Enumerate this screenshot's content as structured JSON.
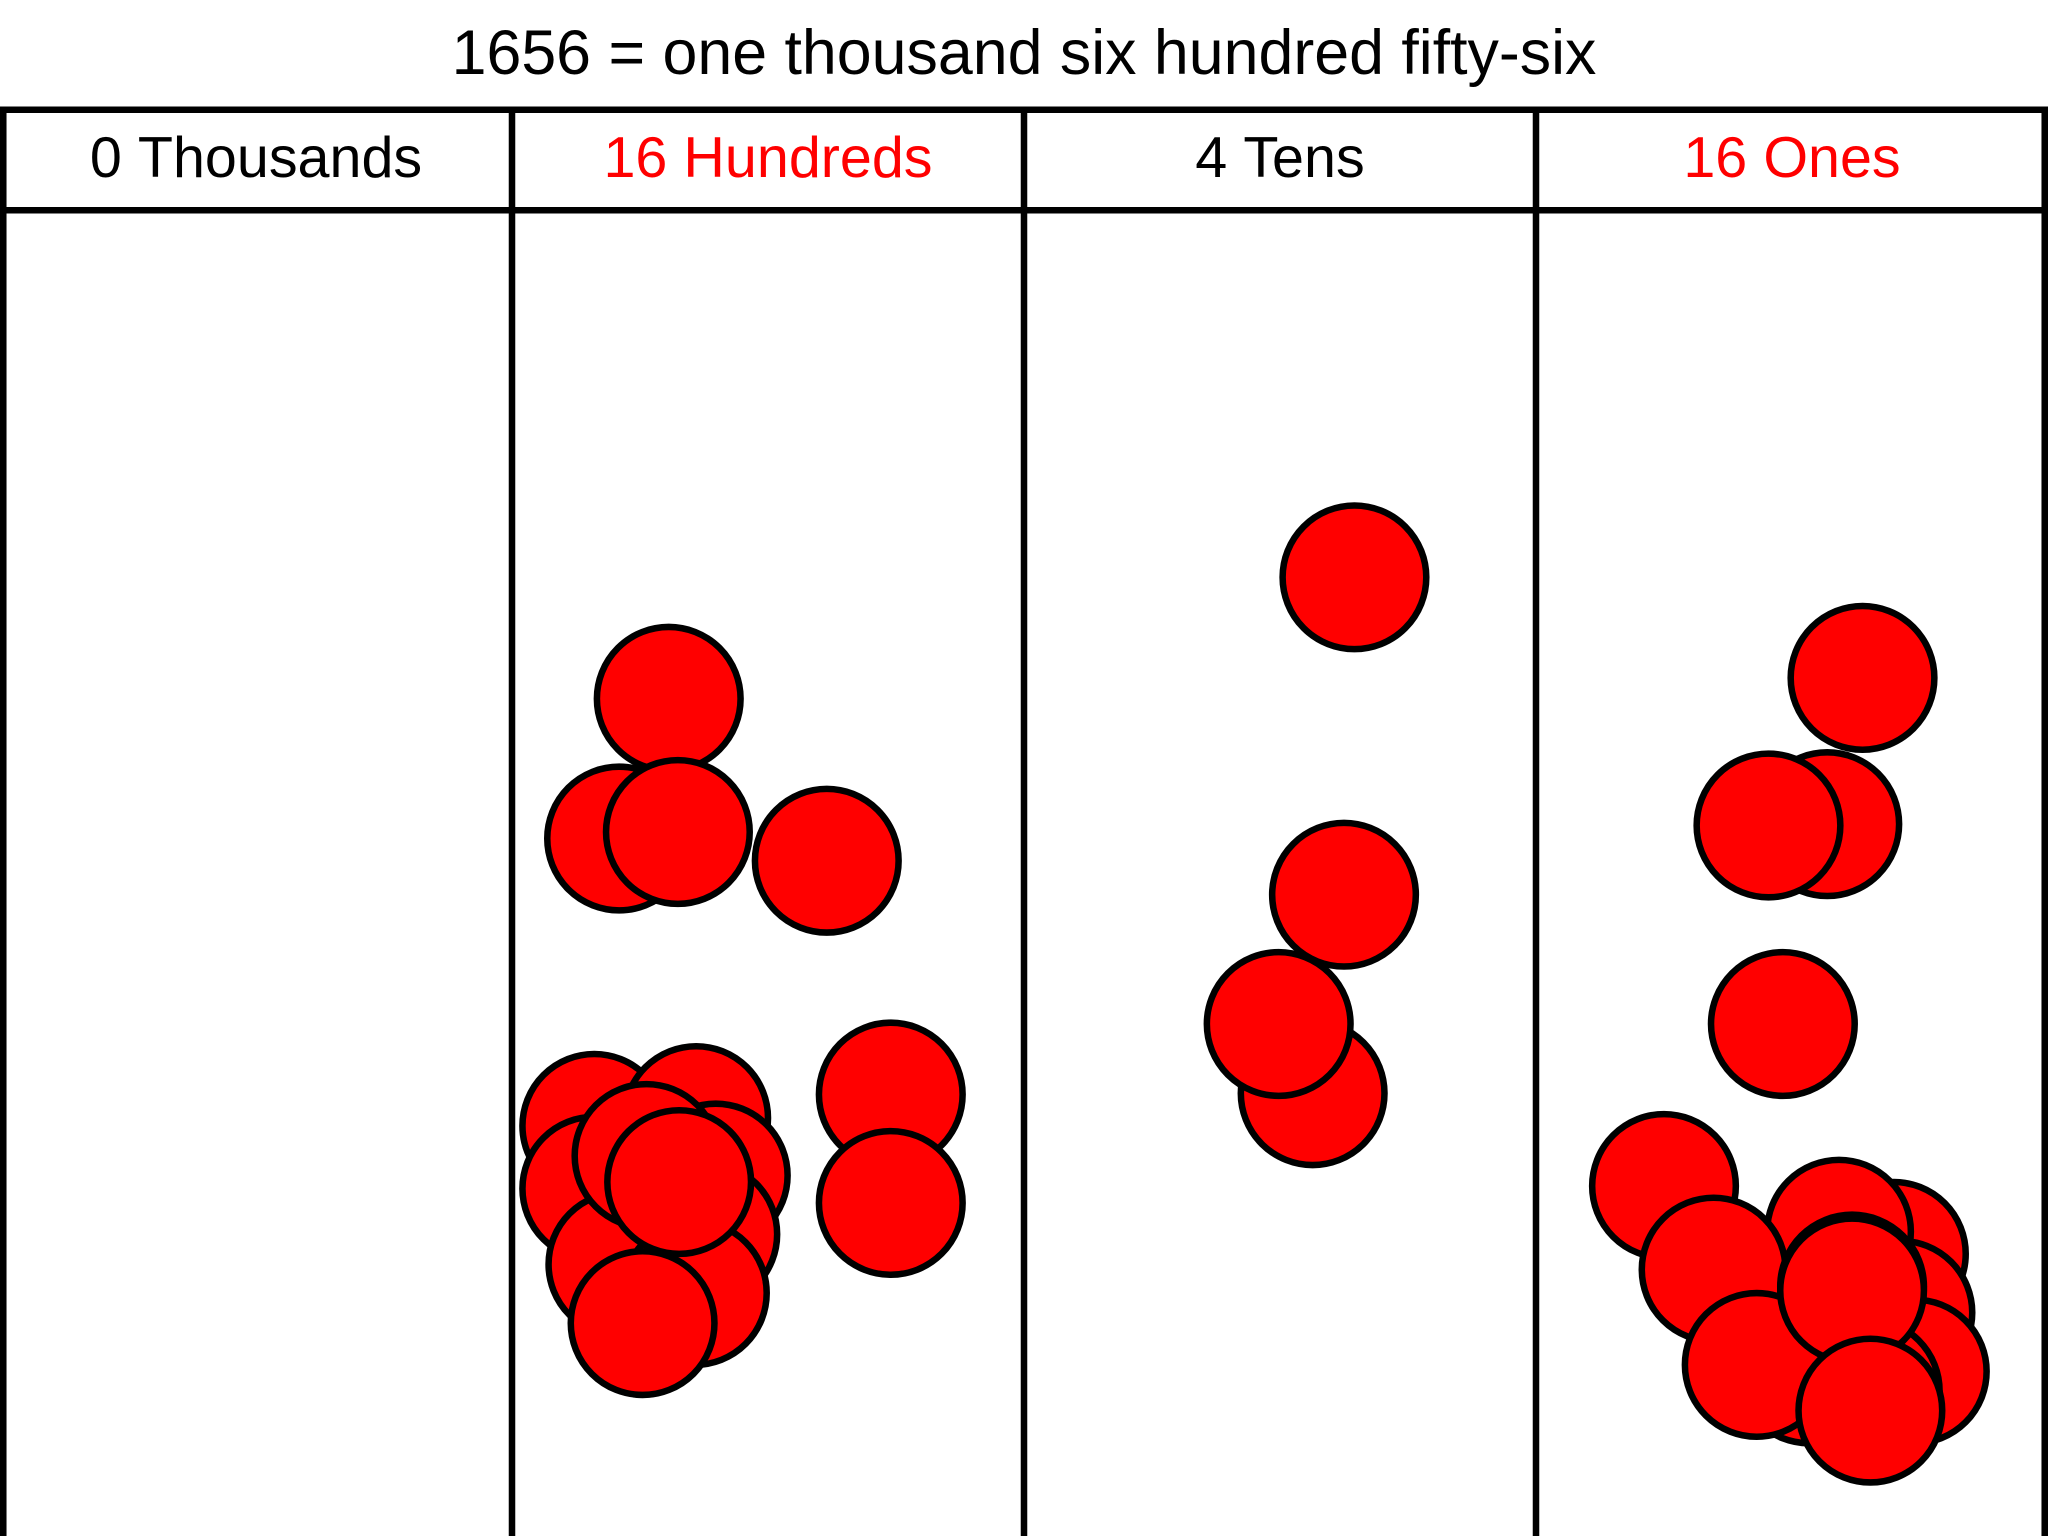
{
  "title": "1656 = one thousand six hundred fifty-six",
  "columns": [
    {
      "count": 0,
      "unit": "Thousands",
      "color": "#000000"
    },
    {
      "count": 16,
      "unit": "Hundreds",
      "color": "#ff0000"
    },
    {
      "count": 4,
      "unit": "Tens",
      "color": "#000000"
    },
    {
      "count": 16,
      "unit": "Ones",
      "color": "#ff0000"
    }
  ]
}
